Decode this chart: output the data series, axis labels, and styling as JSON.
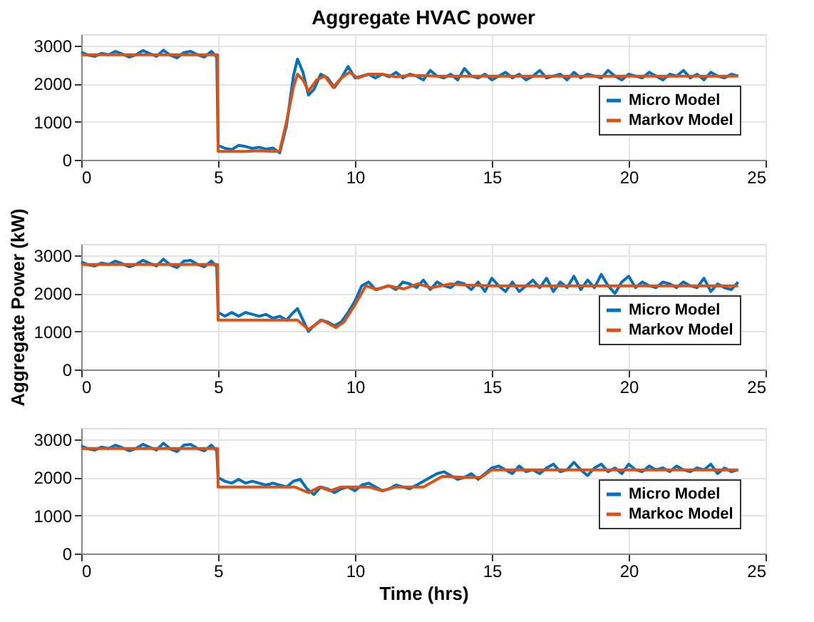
{
  "chart_data": [
    {
      "type": "line",
      "title": "Aggregate HVAC power",
      "xlim": [
        0,
        25
      ],
      "xticks": [
        0,
        5,
        10,
        15,
        20,
        25
      ],
      "ylim": [
        0,
        3300
      ],
      "yticks": [
        0,
        1000,
        2000,
        3000
      ],
      "grid": true,
      "legend": "bottom right",
      "tick_labels": "xy",
      "series": [
        {
          "name": "Micro Model",
          "color": "#0072bd",
          "x": [
            0,
            0.25,
            0.5,
            0.75,
            1,
            1.25,
            1.5,
            1.75,
            2,
            2.25,
            2.5,
            2.75,
            3,
            3.25,
            3.5,
            3.75,
            4,
            4.25,
            4.5,
            4.75,
            4.95,
            5,
            5.25,
            5.5,
            5.75,
            6,
            6.25,
            6.5,
            6.75,
            7,
            7.25,
            7.5,
            7.75,
            7.9,
            8.1,
            8.3,
            8.5,
            8.75,
            9,
            9.25,
            9.5,
            9.75,
            10,
            10.25,
            10.5,
            10.75,
            11,
            11.25,
            11.5,
            11.75,
            12,
            12.25,
            12.5,
            12.75,
            13,
            13.25,
            13.5,
            13.75,
            14,
            14.25,
            14.5,
            14.75,
            15,
            15.25,
            15.5,
            15.75,
            16,
            16.25,
            16.5,
            16.75,
            17,
            17.25,
            17.5,
            17.75,
            18,
            18.25,
            18.5,
            18.75,
            19,
            19.25,
            19.5,
            19.75,
            20,
            20.25,
            20.5,
            20.75,
            21,
            21.25,
            21.5,
            21.75,
            22,
            22.25,
            22.5,
            22.75,
            23,
            23.25,
            23.5,
            23.75,
            24
          ],
          "values": [
            2830,
            2750,
            2720,
            2800,
            2760,
            2850,
            2780,
            2700,
            2760,
            2870,
            2790,
            2720,
            2880,
            2750,
            2680,
            2820,
            2850,
            2760,
            2700,
            2850,
            2700,
            380,
            300,
            270,
            380,
            350,
            300,
            330,
            280,
            310,
            180,
            900,
            2200,
            2650,
            2300,
            1700,
            1850,
            2250,
            2150,
            1900,
            2150,
            2450,
            2150,
            2200,
            2250,
            2150,
            2250,
            2180,
            2300,
            2150,
            2250,
            2200,
            2100,
            2350,
            2200,
            2150,
            2250,
            2100,
            2400,
            2200,
            2150,
            2250,
            2100,
            2200,
            2300,
            2150,
            2250,
            2100,
            2200,
            2350,
            2150,
            2200,
            2250,
            2100,
            2300,
            2150,
            2250,
            2200,
            2150,
            2350,
            2200,
            2100,
            2250,
            2200,
            2150,
            2300,
            2200,
            2100,
            2250,
            2200,
            2350,
            2150,
            2250,
            2100,
            2300,
            2200,
            2150,
            2250,
            2200
          ]
        },
        {
          "name": "Markov Model",
          "color": "#d95319",
          "x": [
            0,
            4.98,
            5,
            5.5,
            6,
            6.5,
            7,
            7.25,
            7.5,
            7.75,
            7.9,
            8.1,
            8.3,
            8.6,
            8.9,
            9.2,
            9.5,
            9.8,
            10.1,
            10.5,
            11,
            11.5,
            12,
            13,
            14,
            24
          ],
          "values": [
            2760,
            2760,
            220,
            220,
            220,
            240,
            220,
            230,
            1000,
            1900,
            2250,
            2100,
            1800,
            2100,
            2200,
            1900,
            2150,
            2300,
            2150,
            2250,
            2250,
            2180,
            2220,
            2200,
            2200,
            2200
          ]
        }
      ]
    },
    {
      "type": "line",
      "ylabel": "Aggregate Power (kW)",
      "xlim": [
        0,
        25
      ],
      "xticks": [
        0,
        5,
        10,
        15,
        20,
        25
      ],
      "ylim": [
        0,
        3300
      ],
      "yticks": [
        0,
        1000,
        2000,
        3000
      ],
      "grid": true,
      "legend": "bottom right",
      "series": [
        {
          "name": "Micro Model",
          "color": "#0072bd",
          "x": [
            0,
            0.25,
            0.5,
            0.75,
            1,
            1.25,
            1.5,
            1.75,
            2,
            2.25,
            2.5,
            2.75,
            3,
            3.25,
            3.5,
            3.75,
            4,
            4.25,
            4.5,
            4.75,
            4.95,
            5,
            5.25,
            5.5,
            5.75,
            6,
            6.25,
            6.5,
            6.75,
            7,
            7.25,
            7.5,
            7.75,
            7.9,
            8.1,
            8.3,
            8.5,
            8.75,
            9,
            9.25,
            9.5,
            9.75,
            10,
            10.25,
            10.5,
            10.75,
            11,
            11.25,
            11.5,
            11.75,
            12,
            12.25,
            12.5,
            12.75,
            13,
            13.25,
            13.5,
            13.75,
            14,
            14.25,
            14.5,
            14.75,
            15,
            15.25,
            15.5,
            15.75,
            16,
            16.25,
            16.5,
            16.75,
            17,
            17.25,
            17.5,
            17.75,
            18,
            18.25,
            18.5,
            18.75,
            19,
            19.25,
            19.5,
            19.75,
            20,
            20.25,
            20.5,
            20.75,
            21,
            21.25,
            21.5,
            21.75,
            22,
            22.25,
            22.5,
            22.75,
            23,
            23.25,
            23.5,
            23.75,
            24
          ],
          "values": [
            2830,
            2750,
            2720,
            2800,
            2760,
            2850,
            2780,
            2700,
            2760,
            2870,
            2790,
            2720,
            2900,
            2750,
            2680,
            2850,
            2870,
            2760,
            2700,
            2850,
            2700,
            1500,
            1400,
            1500,
            1400,
            1500,
            1450,
            1400,
            1450,
            1350,
            1400,
            1300,
            1500,
            1600,
            1300,
            1000,
            1150,
            1300,
            1250,
            1150,
            1250,
            1500,
            1800,
            2200,
            2300,
            2100,
            2150,
            2200,
            2100,
            2300,
            2250,
            2150,
            2350,
            2100,
            2300,
            2200,
            2150,
            2300,
            2250,
            2100,
            2300,
            2050,
            2400,
            2200,
            2050,
            2300,
            2050,
            2200,
            2350,
            2150,
            2400,
            2050,
            2300,
            2150,
            2450,
            2100,
            2350,
            2150,
            2500,
            2200,
            2000,
            2300,
            2450,
            2150,
            2300,
            2200,
            2150,
            2300,
            2250,
            2150,
            2300,
            2200,
            2150,
            2400,
            2050,
            2250,
            2150,
            2100,
            2300
          ]
        },
        {
          "name": "Markov Model",
          "color": "#d95319",
          "x": [
            0,
            4.98,
            5,
            7.9,
            8.3,
            8.8,
            9.3,
            9.6,
            10,
            10.4,
            10.8,
            11.2,
            11.8,
            12.3,
            12.8,
            13.5,
            14,
            15,
            24
          ],
          "values": [
            2760,
            2760,
            1300,
            1300,
            1050,
            1300,
            1100,
            1250,
            1700,
            2200,
            2100,
            2200,
            2120,
            2250,
            2150,
            2250,
            2220,
            2200,
            2200
          ]
        }
      ]
    },
    {
      "type": "line",
      "xlabel": "Time (hrs)",
      "xlim": [
        0,
        25
      ],
      "xticks": [
        0,
        5,
        10,
        15,
        20,
        25
      ],
      "ylim": [
        0,
        3300
      ],
      "yticks": [
        0,
        1000,
        2000,
        3000
      ],
      "grid": true,
      "legend": "bottom right",
      "series": [
        {
          "name": "Micro Model",
          "color": "#0072bd",
          "x": [
            0,
            0.25,
            0.5,
            0.75,
            1,
            1.25,
            1.5,
            1.75,
            2,
            2.25,
            2.5,
            2.75,
            3,
            3.25,
            3.5,
            3.75,
            4,
            4.25,
            4.5,
            4.75,
            4.95,
            5,
            5.25,
            5.5,
            5.75,
            6,
            6.25,
            6.5,
            6.75,
            7,
            7.25,
            7.5,
            7.75,
            8,
            8.25,
            8.5,
            8.75,
            9,
            9.25,
            9.5,
            9.75,
            10,
            10.25,
            10.5,
            10.75,
            11,
            11.25,
            11.5,
            11.75,
            12,
            12.25,
            12.5,
            12.75,
            13,
            13.25,
            13.5,
            13.75,
            14,
            14.25,
            14.5,
            14.75,
            15,
            15.25,
            15.5,
            15.75,
            16,
            16.25,
            16.5,
            16.75,
            17,
            17.25,
            17.5,
            17.75,
            18,
            18.25,
            18.5,
            18.75,
            19,
            19.25,
            19.5,
            19.75,
            20,
            20.25,
            20.5,
            20.75,
            21,
            21.25,
            21.5,
            21.75,
            22,
            22.25,
            22.5,
            22.75,
            23,
            23.25,
            23.5,
            23.75,
            24
          ],
          "values": [
            2830,
            2750,
            2720,
            2800,
            2760,
            2850,
            2780,
            2700,
            2760,
            2870,
            2790,
            2720,
            2900,
            2750,
            2680,
            2850,
            2870,
            2760,
            2700,
            2850,
            2700,
            2000,
            1900,
            1850,
            1950,
            1850,
            1900,
            1850,
            1800,
            1850,
            1800,
            1750,
            1900,
            1950,
            1700,
            1550,
            1750,
            1700,
            1600,
            1700,
            1750,
            1650,
            1800,
            1850,
            1750,
            1650,
            1700,
            1800,
            1750,
            1700,
            1800,
            1900,
            2000,
            2100,
            2150,
            2050,
            1950,
            2000,
            2100,
            1950,
            2100,
            2250,
            2300,
            2200,
            2100,
            2300,
            2150,
            2200,
            2100,
            2250,
            2350,
            2150,
            2200,
            2400,
            2200,
            2050,
            2250,
            2350,
            2150,
            2250,
            2100,
            2350,
            2200,
            2150,
            2300,
            2200,
            2250,
            2150,
            2300,
            2200,
            2150,
            2250,
            2200,
            2350,
            2100,
            2250,
            2150,
            2200
          ]
        },
        {
          "name": "Markoc Model",
          "color": "#d95319",
          "x": [
            0,
            4.98,
            5,
            7.8,
            8.3,
            8.7,
            9.1,
            9.5,
            10.5,
            11,
            11.5,
            12.5,
            13.2,
            14,
            14.6,
            15,
            24
          ],
          "values": [
            2760,
            2760,
            1750,
            1750,
            1600,
            1750,
            1650,
            1750,
            1750,
            1650,
            1750,
            1750,
            2030,
            2000,
            2000,
            2200,
            2200
          ]
        }
      ]
    }
  ]
}
